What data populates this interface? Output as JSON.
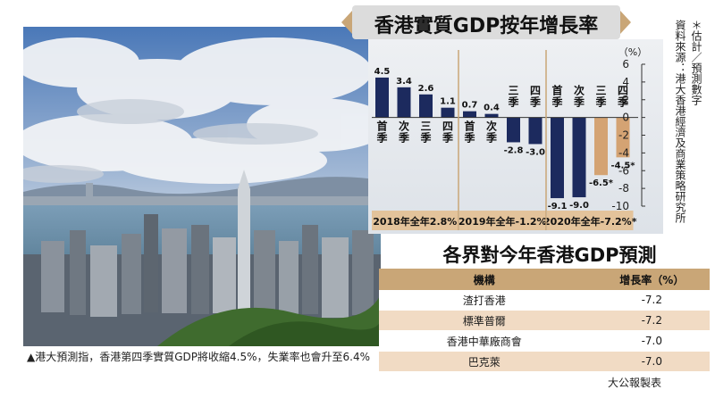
{
  "caption": "▲港大預測指，香港第四季實質GDP將收縮4.5%，失業率也會升至6.4%",
  "chart_data": {
    "type": "bar",
    "title": "香港實質GDP按年增長率",
    "unit_label": "（%）",
    "ylim": [
      -10,
      6
    ],
    "yticks": [
      6,
      4,
      2,
      0,
      -2,
      -4,
      -6,
      -8,
      -10
    ],
    "source_note": "資料來源：港大香港經濟及商業策略研究所",
    "estimate_note": "＊估計／預測數字",
    "categories": [
      "首季",
      "次季",
      "三季",
      "四季",
      "首季",
      "次季",
      "三季",
      "四季",
      "首季",
      "次季",
      "三季",
      "四季"
    ],
    "values": [
      4.5,
      3.4,
      2.6,
      1.1,
      0.7,
      0.4,
      -2.8,
      -3.0,
      -9.1,
      -9.0,
      -6.5,
      -4.5
    ],
    "value_labels": [
      "4.5",
      "3.4",
      "2.6",
      "1.1",
      "0.7",
      "0.4",
      "-2.8",
      "-3.0",
      "-9.1",
      "-9.0",
      "-6.5*",
      "-4.5*"
    ],
    "estimated": [
      false,
      false,
      false,
      false,
      false,
      false,
      false,
      false,
      false,
      false,
      true,
      true
    ],
    "colors": {
      "actual": "#1c2a5e",
      "estimate": "#d4a373"
    },
    "year_groups": [
      {
        "label": "2018年全年2.8%",
        "start": 0,
        "end": 3
      },
      {
        "label": "2019年全年-1.2%",
        "start": 4,
        "end": 7
      },
      {
        "label": "2020年全年-7.2%*",
        "start": 8,
        "end": 11
      }
    ]
  },
  "table": {
    "title": "各界對今年香港GDP預測",
    "headers": [
      "機構",
      "增長率（%）"
    ],
    "rows": [
      {
        "institution": "渣打香港",
        "rate": "-7.2"
      },
      {
        "institution": "標準普爾",
        "rate": "-7.2"
      },
      {
        "institution": "香港中華廠商會",
        "rate": "-7.0"
      },
      {
        "institution": "巴克萊",
        "rate": "-7.0"
      }
    ],
    "credit": "大公報製表"
  }
}
